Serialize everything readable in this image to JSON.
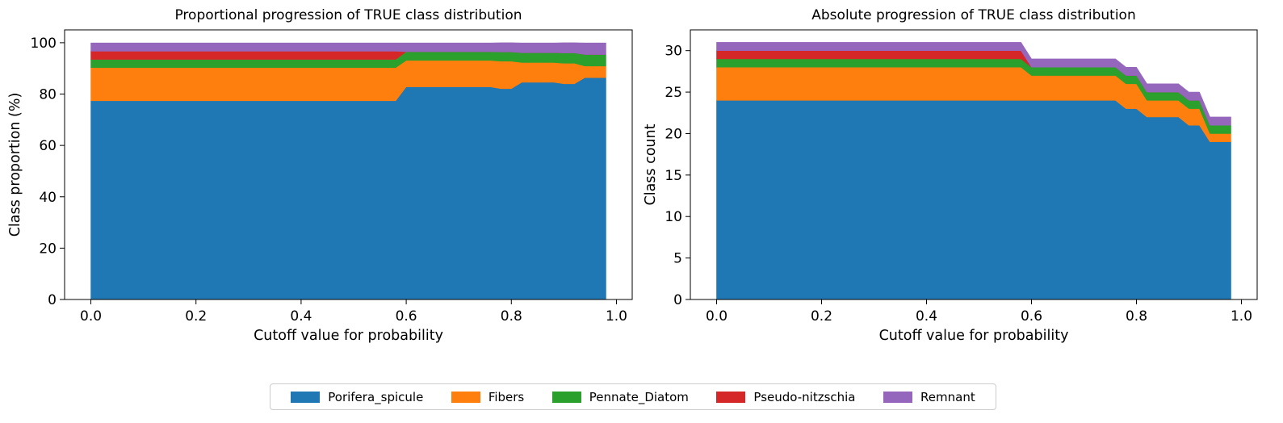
{
  "legend": {
    "placement": "bottom-center",
    "items": [
      {
        "label": "Porifera_spicule",
        "color": "#1f77b4"
      },
      {
        "label": "Fibers",
        "color": "#ff7f0e"
      },
      {
        "label": "Pennate_Diatom",
        "color": "#2ca02c"
      },
      {
        "label": "Pseudo-nitzschia",
        "color": "#d62728"
      },
      {
        "label": "Remnant",
        "color": "#9467bd"
      }
    ]
  },
  "chart_data": [
    {
      "type": "area",
      "stacked": true,
      "title": "Proportional progression of TRUE class distribution",
      "xlabel": "Cutoff value for probability",
      "ylabel": "Class proportion (%)",
      "xlim": [
        -0.05,
        1.03
      ],
      "ylim": [
        0,
        105
      ],
      "xticks": [
        "0.0",
        "0.2",
        "0.4",
        "0.6",
        "0.8",
        "1.0"
      ],
      "yticks": [
        "0",
        "20",
        "40",
        "60",
        "80",
        "100"
      ],
      "grid": false,
      "x": [
        0.0,
        0.58,
        0.6,
        0.76,
        0.78,
        0.8,
        0.82,
        0.88,
        0.9,
        0.92,
        0.94,
        0.98
      ],
      "series": [
        {
          "name": "Porifera_spicule",
          "color": "#1f77b4",
          "values": [
            77.4,
            77.4,
            82.8,
            82.8,
            82.1,
            82.1,
            84.6,
            84.6,
            84.0,
            84.0,
            86.4,
            86.4
          ]
        },
        {
          "name": "Fibers",
          "color": "#ff7f0e",
          "values": [
            12.9,
            12.9,
            10.3,
            10.3,
            10.7,
            10.7,
            7.7,
            7.7,
            8.0,
            8.0,
            4.5,
            4.5
          ]
        },
        {
          "name": "Pennate_Diatom",
          "color": "#2ca02c",
          "values": [
            3.2,
            3.2,
            3.4,
            3.4,
            3.6,
            3.6,
            3.8,
            3.8,
            4.0,
            4.0,
            4.5,
            4.5
          ]
        },
        {
          "name": "Pseudo-nitzschia",
          "color": "#d62728",
          "values": [
            3.2,
            3.2,
            0.0,
            0.0,
            0.0,
            0.0,
            0.0,
            0.0,
            0.0,
            0.0,
            0.0,
            0.0
          ]
        },
        {
          "name": "Remnant",
          "color": "#9467bd",
          "values": [
            3.2,
            3.2,
            3.4,
            3.4,
            3.6,
            3.6,
            3.8,
            3.8,
            4.0,
            4.0,
            4.5,
            4.5
          ]
        }
      ]
    },
    {
      "type": "area",
      "stacked": true,
      "title": "Absolute progression of TRUE class distribution",
      "xlabel": "Cutoff value for probability",
      "ylabel": "Class count",
      "xlim": [
        -0.05,
        1.03
      ],
      "ylim": [
        0,
        32.5
      ],
      "xticks": [
        "0.0",
        "0.2",
        "0.4",
        "0.6",
        "0.8",
        "1.0"
      ],
      "yticks": [
        "0",
        "5",
        "10",
        "15",
        "20",
        "25",
        "30"
      ],
      "grid": false,
      "x": [
        0.0,
        0.58,
        0.6,
        0.76,
        0.78,
        0.8,
        0.82,
        0.88,
        0.9,
        0.92,
        0.94,
        0.98
      ],
      "series": [
        {
          "name": "Porifera_spicule",
          "color": "#1f77b4",
          "values": [
            24,
            24,
            24,
            24,
            23,
            23,
            22,
            22,
            21,
            21,
            19,
            19
          ]
        },
        {
          "name": "Fibers",
          "color": "#ff7f0e",
          "values": [
            4,
            4,
            3,
            3,
            3,
            3,
            2,
            2,
            2,
            2,
            1,
            1
          ]
        },
        {
          "name": "Pennate_Diatom",
          "color": "#2ca02c",
          "values": [
            1,
            1,
            1,
            1,
            1,
            1,
            1,
            1,
            1,
            1,
            1,
            1
          ]
        },
        {
          "name": "Pseudo-nitzschia",
          "color": "#d62728",
          "values": [
            1,
            1,
            0,
            0,
            0,
            0,
            0,
            0,
            0,
            0,
            0,
            0
          ]
        },
        {
          "name": "Remnant",
          "color": "#9467bd",
          "values": [
            1,
            1,
            1,
            1,
            1,
            1,
            1,
            1,
            1,
            1,
            1,
            1
          ]
        }
      ]
    }
  ]
}
